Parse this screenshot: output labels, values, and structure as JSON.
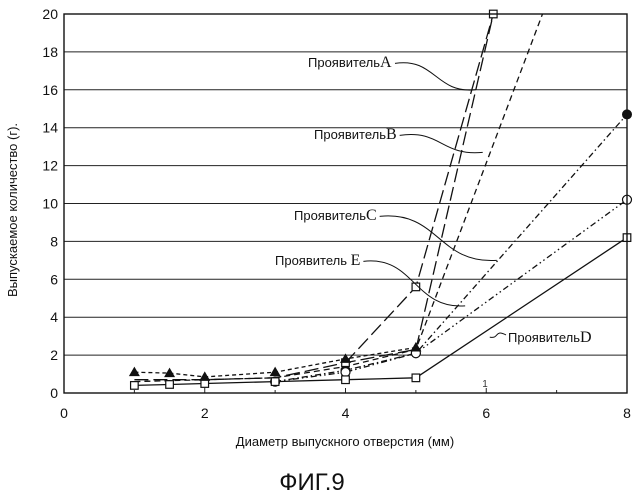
{
  "figure": {
    "caption": "ФИГ.9",
    "bottom_mark": "1"
  },
  "chart_data": {
    "type": "line",
    "title": "",
    "xlabel": "Диаметр выпускного отверстия (мм)",
    "ylabel": "Выпускаемое количество (г).",
    "xlim": [
      0,
      8
    ],
    "ylim": [
      0,
      20
    ],
    "x_ticks": [
      0,
      2,
      4,
      6,
      8
    ],
    "y_ticks": [
      0,
      2,
      4,
      6,
      8,
      10,
      12,
      14,
      16,
      18,
      20
    ],
    "grid": "horizontal",
    "series": [
      {
        "name": "Проявитель A",
        "style": "long-dash",
        "marker": "none",
        "x": [
          1,
          2,
          3,
          4,
          5,
          6.1
        ],
        "y": [
          0.7,
          0.7,
          0.8,
          1.6,
          2.3,
          20
        ]
      },
      {
        "name": "ПроявительB",
        "style": "dash",
        "marker": "none",
        "x": [
          1,
          2,
          3,
          4,
          5,
          6.8
        ],
        "y": [
          0.6,
          0.7,
          0.8,
          1.4,
          2.3,
          20
        ]
      },
      {
        "name": "ПроявительC",
        "style": "dash-dot",
        "marker": "filled-circle",
        "x": [
          3,
          4,
          5,
          8
        ],
        "y": [
          0.6,
          1.2,
          2.1,
          14.7
        ]
      },
      {
        "name": "Проявитель E",
        "style": "dash-dot-dot",
        "marker": "open-circle",
        "x": [
          3,
          4,
          5,
          8
        ],
        "y": [
          0.6,
          1.1,
          2.1,
          10.2
        ]
      },
      {
        "name": "ПроявительD",
        "style": "solid",
        "marker": "open-square",
        "x": [
          1,
          1.5,
          2,
          3,
          4,
          5,
          8
        ],
        "y": [
          0.4,
          0.45,
          0.5,
          0.6,
          0.7,
          0.8,
          8.2
        ]
      },
      {
        "name": "",
        "style": "long-dash",
        "marker": "open-square",
        "x": [
          4,
          5,
          6.1
        ],
        "y": [
          1.6,
          5.6,
          20
        ]
      },
      {
        "name": "",
        "style": "short-dash",
        "marker": "filled-triangle",
        "x": [
          1,
          1.5,
          2,
          3,
          4,
          5
        ],
        "y": [
          1.1,
          1.05,
          0.85,
          1.1,
          1.8,
          2.4
        ]
      }
    ],
    "annotations": [
      {
        "text": "Проявитель",
        "letter": "A",
        "series_index": 0,
        "target": [
          5.85,
          16.0
        ]
      },
      {
        "text": "Проявитель",
        "letter": "B",
        "series_index": 1,
        "target": [
          5.95,
          12.7
        ]
      },
      {
        "text": "Проявитель",
        "letter": "C",
        "series_index": 2,
        "target": [
          6.15,
          7.0
        ]
      },
      {
        "text": "Проявитель ",
        "letter": "E",
        "series_index": 3,
        "target": [
          5.7,
          4.6
        ]
      },
      {
        "text": "Проявитель",
        "letter": "D",
        "series_index": 4,
        "target": [
          6.05,
          2.95
        ]
      }
    ]
  }
}
